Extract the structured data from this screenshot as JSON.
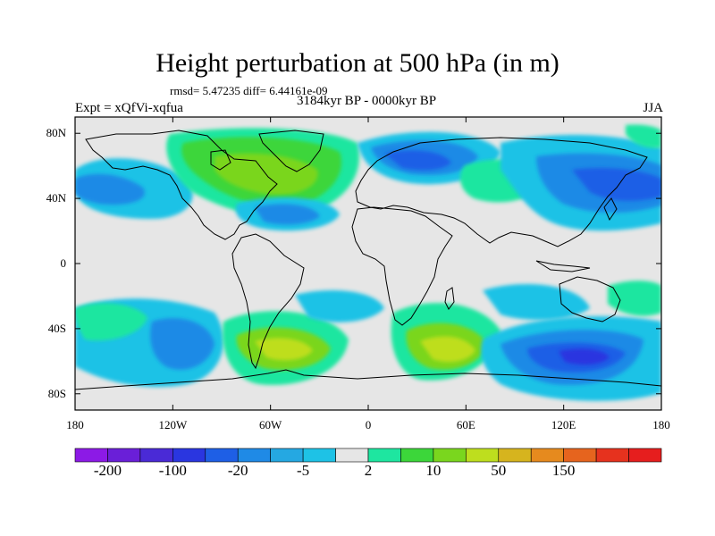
{
  "title": "Height perturbation at 500 hPa (in m)",
  "stats": "rmsd= 5.47235 diff= 6.44161e-09",
  "left_label": "Expt = xQfVi-xqfua",
  "center_label": "3184kyr BP - 0000kyr BP",
  "right_label": "JJA",
  "map": {
    "projection": "cylindrical-equidistant",
    "lon_range": [
      -180,
      180
    ],
    "lat_range": [
      -90,
      90
    ],
    "lat_ticks": [
      {
        "value": 80,
        "label": "80N"
      },
      {
        "value": 40,
        "label": "40N"
      },
      {
        "value": 0,
        "label": "0"
      },
      {
        "value": -40,
        "label": "40S"
      },
      {
        "value": -80,
        "label": "80S"
      }
    ],
    "lon_ticks": [
      {
        "value": -180,
        "label": "180"
      },
      {
        "value": -120,
        "label": "120W"
      },
      {
        "value": -60,
        "label": "60W"
      },
      {
        "value": 0,
        "label": "0"
      },
      {
        "value": 60,
        "label": "60E"
      },
      {
        "value": 120,
        "label": "120E"
      },
      {
        "value": 180,
        "label": "180"
      }
    ],
    "background_color": "#e6e6e6",
    "coastline_color": "#000000"
  },
  "colorbar": {
    "colors": [
      "#8c1ae6",
      "#6a1fd8",
      "#4a2ad6",
      "#2a36e0",
      "#1e5fe6",
      "#1f8ae6",
      "#25a8e2",
      "#1ec2e6",
      "#e6e6e6",
      "#1ee6a0",
      "#3cd63a",
      "#7ad61e",
      "#bede1e",
      "#d6b41e",
      "#e68a1e",
      "#e6641e",
      "#e6321e",
      "#e61e1e"
    ],
    "tick_labels": [
      {
        "index": 1,
        "label": "-200"
      },
      {
        "index": 3,
        "label": "-100"
      },
      {
        "index": 5,
        "label": "-20"
      },
      {
        "index": 7,
        "label": "-5"
      },
      {
        "index": 9,
        "label": "2"
      },
      {
        "index": 11,
        "label": "10"
      },
      {
        "index": 13,
        "label": "50"
      },
      {
        "index": 15,
        "label": "150"
      }
    ]
  }
}
